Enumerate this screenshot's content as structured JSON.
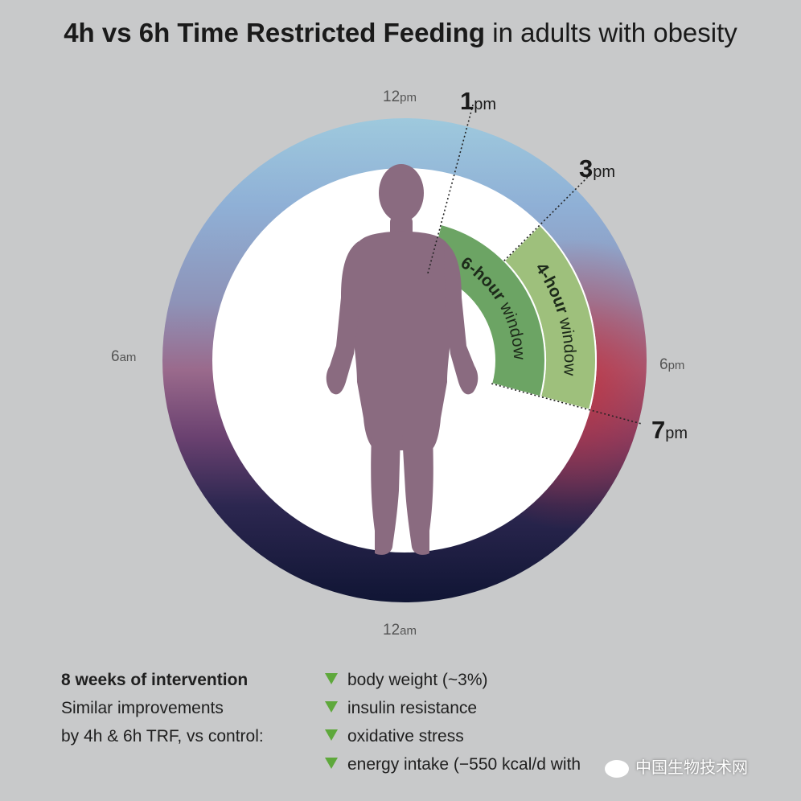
{
  "title": {
    "bold": "4h vs 6h Time Restricted Feeding",
    "rest": " in adults with obesity"
  },
  "clock": {
    "labels": {
      "noon_num": "12",
      "noon_unit": "pm",
      "six_am_num": "6",
      "six_am_unit": "am",
      "six_pm_num": "6",
      "six_pm_unit": "pm",
      "midnight_num": "12",
      "midnight_unit": "am"
    },
    "markers": {
      "one_pm_num": "1",
      "one_pm_unit": "pm",
      "three_pm_num": "3",
      "three_pm_unit": "pm",
      "seven_pm_num": "7",
      "seven_pm_unit": "pm"
    },
    "windows": {
      "six_hour": {
        "bold": "6-hour",
        "rest": " window",
        "start_hour": 13,
        "end_hour": 19
      },
      "four_hour": {
        "bold": "4-hour",
        "rest": " window",
        "start_hour": 15,
        "end_hour": 19
      }
    },
    "colors": {
      "six_hour_fill": "#6ca464",
      "four_hour_fill": "#9ec07c",
      "figure": "#8a6b80"
    }
  },
  "findings": {
    "heading": "8 weeks of intervention",
    "line1": "Similar improvements",
    "line2": "by 4h & 6h TRF, vs control:",
    "items": [
      "body weight (~3%)",
      "insulin resistance",
      "oxidative stress",
      "energy intake (−550 kcal/d with"
    ]
  },
  "watermark": "中国生物技术网"
}
